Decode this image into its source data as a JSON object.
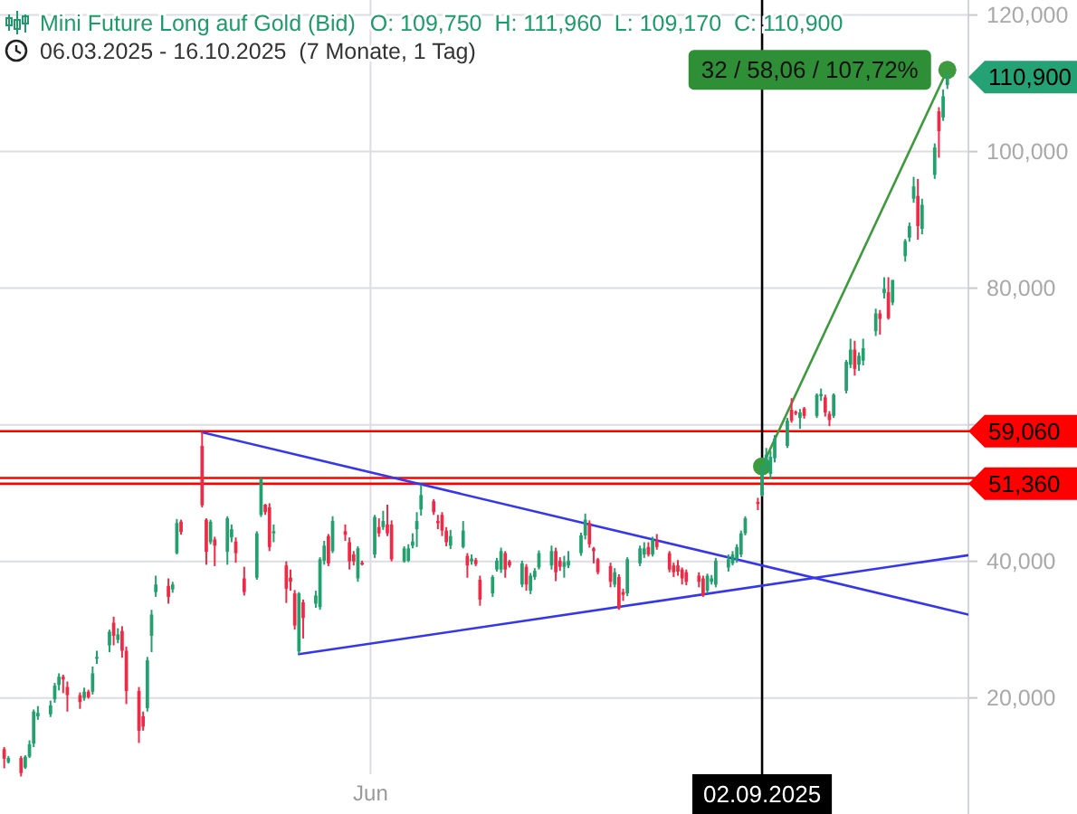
{
  "chart_data": {
    "type": "candlestick",
    "title": "Mini Future Long auf Gold (Bid)",
    "subtitle": "06.03.2025 - 16.10.2025  (7 Monate, 1 Tag)",
    "x": [
      "2025-03-06",
      "2025-03-07",
      "2025-03-10",
      "2025-03-11",
      "2025-03-12",
      "2025-03-13",
      "2025-03-14",
      "2025-03-17",
      "2025-03-18",
      "2025-03-19",
      "2025-03-20",
      "2025-03-21",
      "2025-03-24",
      "2025-03-25",
      "2025-03-26",
      "2025-03-27",
      "2025-03-28",
      "2025-03-31",
      "2025-04-01",
      "2025-04-02",
      "2025-04-03",
      "2025-04-04",
      "2025-04-07",
      "2025-04-08",
      "2025-04-09",
      "2025-04-10",
      "2025-04-11",
      "2025-04-14",
      "2025-04-15",
      "2025-04-16",
      "2025-04-17",
      "2025-04-22",
      "2025-04-23",
      "2025-04-24",
      "2025-04-25",
      "2025-04-28",
      "2025-04-29",
      "2025-04-30",
      "2025-05-02",
      "2025-05-05",
      "2025-05-06",
      "2025-05-07",
      "2025-05-08",
      "2025-05-09",
      "2025-05-12",
      "2025-05-13",
      "2025-05-14",
      "2025-05-15",
      "2025-05-16",
      "2025-05-19",
      "2025-05-20",
      "2025-05-21",
      "2025-05-22",
      "2025-05-23",
      "2025-05-26",
      "2025-05-27",
      "2025-05-28",
      "2025-05-29",
      "2025-05-30",
      "2025-06-02",
      "2025-06-03",
      "2025-06-04",
      "2025-06-05",
      "2025-06-06",
      "2025-06-09",
      "2025-06-10",
      "2025-06-11",
      "2025-06-12",
      "2025-06-13",
      "2025-06-16",
      "2025-06-17",
      "2025-06-18",
      "2025-06-19",
      "2025-06-20",
      "2025-06-23",
      "2025-06-24",
      "2025-06-25",
      "2025-06-26",
      "2025-06-27",
      "2025-06-30",
      "2025-07-01",
      "2025-07-02",
      "2025-07-03",
      "2025-07-04",
      "2025-07-07",
      "2025-07-08",
      "2025-07-09",
      "2025-07-10",
      "2025-07-11",
      "2025-07-14",
      "2025-07-15",
      "2025-07-16",
      "2025-07-17",
      "2025-07-18",
      "2025-07-21",
      "2025-07-22",
      "2025-07-23",
      "2025-07-24",
      "2025-07-25",
      "2025-07-28",
      "2025-07-29",
      "2025-07-30",
      "2025-07-31",
      "2025-08-01",
      "2025-08-04",
      "2025-08-05",
      "2025-08-06",
      "2025-08-07",
      "2025-08-08",
      "2025-08-11",
      "2025-08-12",
      "2025-08-13",
      "2025-08-14",
      "2025-08-15",
      "2025-08-18",
      "2025-08-19",
      "2025-08-20",
      "2025-08-21",
      "2025-08-22",
      "2025-08-25",
      "2025-08-26",
      "2025-08-27",
      "2025-08-28",
      "2025-08-29",
      "2025-09-01",
      "2025-09-02",
      "2025-09-03",
      "2025-09-04",
      "2025-09-05",
      "2025-09-08",
      "2025-09-09",
      "2025-09-10",
      "2025-09-11",
      "2025-09-12",
      "2025-09-15",
      "2025-09-16",
      "2025-09-17",
      "2025-09-18",
      "2025-09-19",
      "2025-09-22",
      "2025-09-23",
      "2025-09-24",
      "2025-09-25",
      "2025-09-26",
      "2025-09-29",
      "2025-09-30",
      "2025-10-01",
      "2025-10-02",
      "2025-10-03",
      "2025-10-06",
      "2025-10-07",
      "2025-10-08",
      "2025-10-09",
      "2025-10-10",
      "2025-10-13",
      "2025-10-14",
      "2025-10-15",
      "2025-10-16"
    ],
    "ohlc": [
      [
        12500,
        12800,
        9700,
        11100
      ],
      [
        10600,
        11500,
        10400,
        11200
      ],
      [
        11200,
        11500,
        8500,
        9000
      ],
      [
        9800,
        11600,
        9600,
        11400
      ],
      [
        11400,
        13800,
        11200,
        13200
      ],
      [
        13300,
        18300,
        12800,
        18000
      ],
      [
        17300,
        18800,
        16800,
        17800
      ],
      [
        17600,
        19600,
        17200,
        18900
      ],
      [
        19800,
        22200,
        19300,
        21800
      ],
      [
        21900,
        23600,
        21100,
        23100
      ],
      [
        23100,
        23400,
        20700,
        22700
      ],
      [
        21600,
        22400,
        18000,
        20400
      ],
      [
        20400,
        20800,
        18400,
        19400
      ],
      [
        20000,
        21500,
        19600,
        20900
      ],
      [
        20900,
        21200,
        19900,
        20100
      ],
      [
        20900,
        24600,
        20500,
        23600
      ],
      [
        25800,
        26900,
        25000,
        26000
      ],
      [
        27700,
        30000,
        26700,
        29700
      ],
      [
        31000,
        31900,
        27700,
        29100
      ],
      [
        28500,
        30200,
        28000,
        29300
      ],
      [
        29800,
        30500,
        25900,
        26900
      ],
      [
        26900,
        27500,
        19100,
        21000
      ],
      [
        21000,
        21600,
        13400,
        15200
      ],
      [
        17300,
        18000,
        15200,
        15800
      ],
      [
        18500,
        26000,
        18000,
        25500
      ],
      [
        29100,
        32900,
        26700,
        32200
      ],
      [
        35500,
        37900,
        34800,
        36600
      ],
      [
        36400,
        37500,
        33800,
        34800
      ],
      [
        35900,
        37000,
        35400,
        36600
      ],
      [
        41200,
        46200,
        41000,
        45600
      ],
      [
        45800,
        46100,
        43900,
        44300
      ],
      [
        56900,
        59000,
        47900,
        48200
      ],
      [
        46100,
        46300,
        39500,
        41400
      ],
      [
        42800,
        46100,
        42500,
        45800
      ],
      [
        43200,
        43600,
        39300,
        42300
      ],
      [
        41400,
        46600,
        39500,
        46300
      ],
      [
        43500,
        45400,
        42800,
        44700
      ],
      [
        42900,
        43500,
        39800,
        41200
      ],
      [
        37500,
        39200,
        35000,
        35500
      ],
      [
        37600,
        44400,
        37300,
        44100
      ],
      [
        46800,
        52200,
        46500,
        52100
      ],
      [
        48300,
        48400,
        46800,
        47200
      ],
      [
        47900,
        48500,
        41500,
        42100
      ],
      [
        44100,
        45400,
        42800,
        44400
      ],
      [
        39400,
        40000,
        33900,
        36000
      ],
      [
        37600,
        38800,
        35700,
        37000
      ],
      [
        35300,
        35800,
        30000,
        30600
      ],
      [
        26800,
        35500,
        26400,
        35300
      ],
      [
        34000,
        34400,
        28700,
        31700
      ],
      [
        33800,
        35700,
        33200,
        35000
      ],
      [
        33300,
        40600,
        32900,
        40300
      ],
      [
        40100,
        43000,
        39500,
        42300
      ],
      [
        43700,
        44000,
        39300,
        39700
      ],
      [
        41500,
        46600,
        41200,
        45900
      ],
      [
        44400,
        45400,
        43000,
        43900
      ],
      [
        42800,
        43500,
        38800,
        40000
      ],
      [
        41000,
        41500,
        39400,
        40000
      ],
      [
        37500,
        42200,
        37000,
        41900
      ],
      [
        39800,
        40100,
        39400,
        39600
      ],
      [
        41000,
        46800,
        40500,
        46500
      ],
      [
        45000,
        46300,
        43600,
        44100
      ],
      [
        45000,
        47400,
        44600,
        45900
      ],
      [
        45400,
        48300,
        43700,
        44100
      ],
      [
        45400,
        46000,
        40000,
        40300
      ],
      [
        40000,
        42200,
        39800,
        41900
      ],
      [
        40100,
        42500,
        39900,
        41900
      ],
      [
        42300,
        44100,
        41900,
        42900
      ],
      [
        44700,
        47200,
        42100,
        45900
      ],
      [
        47600,
        51200,
        46700,
        49700
      ],
      [
        48800,
        49100,
        46800,
        47200
      ],
      [
        45900,
        46800,
        44700,
        45600
      ],
      [
        46800,
        47200,
        43700,
        44500
      ],
      [
        44500,
        45000,
        42200,
        42800
      ],
      [
        42300,
        44600,
        41800,
        43700
      ],
      [
        42100,
        45900,
        41900,
        44500
      ],
      [
        40800,
        41200,
        37600,
        39400
      ],
      [
        40000,
        41000,
        39500,
        40400
      ],
      [
        40200,
        40500,
        39300,
        39600
      ],
      [
        37300,
        37900,
        33500,
        34400
      ],
      [
        35300,
        38000,
        34800,
        37700
      ],
      [
        38800,
        40500,
        38500,
        40100
      ],
      [
        38800,
        42000,
        38300,
        41500
      ],
      [
        41200,
        41500,
        37600,
        38800
      ],
      [
        40000,
        40200,
        39100,
        39400
      ],
      [
        36600,
        40100,
        36200,
        39700
      ],
      [
        39200,
        39600,
        35700,
        36600
      ],
      [
        35700,
        38300,
        35200,
        37900
      ],
      [
        37700,
        39000,
        37300,
        38600
      ],
      [
        39100,
        41600,
        38800,
        41200
      ],
      [
        39400,
        42300,
        38800,
        41500
      ],
      [
        41500,
        42000,
        37100,
        38400
      ],
      [
        40100,
        40600,
        38600,
        39200
      ],
      [
        39200,
        40800,
        37600,
        39900
      ],
      [
        39400,
        41500,
        39000,
        40100
      ],
      [
        41200,
        44200,
        40800,
        43800
      ],
      [
        43800,
        47000,
        43200,
        46100
      ],
      [
        45600,
        46000,
        42000,
        42500
      ],
      [
        41900,
        42100,
        39700,
        41500
      ],
      [
        40300,
        40500,
        38100,
        38400
      ],
      [
        39300,
        39800,
        36200,
        37000
      ],
      [
        36600,
        39000,
        36200,
        38400
      ],
      [
        37700,
        38100,
        32900,
        33100
      ],
      [
        35500,
        36000,
        34200,
        35100
      ],
      [
        35300,
        40600,
        34900,
        40300
      ],
      [
        39700,
        42300,
        39300,
        41900
      ],
      [
        41000,
        42800,
        40500,
        41900
      ],
      [
        42100,
        42800,
        40700,
        41000
      ],
      [
        41000,
        43600,
        40700,
        43200
      ],
      [
        43000,
        44000,
        41700,
        42100
      ],
      [
        41200,
        41500,
        38400,
        38800
      ],
      [
        39400,
        39800,
        37700,
        38400
      ],
      [
        39400,
        40200,
        37900,
        38500
      ],
      [
        38800,
        39100,
        36600,
        37500
      ],
      [
        38400,
        38800,
        36500,
        37000
      ],
      [
        37900,
        38400,
        36200,
        37000
      ],
      [
        37500,
        37900,
        34800,
        35000
      ],
      [
        35700,
        38200,
        35300,
        37900
      ],
      [
        37000,
        38000,
        36600,
        37500
      ],
      [
        36600,
        40500,
        36200,
        40100
      ],
      [
        39100,
        41000,
        38500,
        40300
      ],
      [
        39700,
        41500,
        39400,
        41000
      ],
      [
        40300,
        42500,
        39800,
        42100
      ],
      [
        41000,
        44500,
        40600,
        44100
      ],
      [
        44100,
        46600,
        43800,
        46300
      ],
      [
        48700,
        49300,
        47500,
        48400
      ],
      [
        49700,
        54200,
        49500,
        53900
      ],
      [
        53800,
        56600,
        53300,
        55600
      ],
      [
        52800,
        56200,
        52000,
        55300
      ],
      [
        55100,
        58500,
        54500,
        58000
      ],
      [
        56900,
        61000,
        56600,
        60600
      ],
      [
        62200,
        63900,
        60300,
        60600
      ],
      [
        61900,
        62100,
        61400,
        61700
      ],
      [
        61000,
        62300,
        59400,
        61800
      ],
      [
        62400,
        62600,
        60900,
        61300
      ],
      [
        61300,
        64600,
        61000,
        64400
      ],
      [
        64200,
        65300,
        63500,
        64500
      ],
      [
        64000,
        64400,
        61200,
        61800
      ],
      [
        61600,
        62000,
        59800,
        60700
      ],
      [
        61300,
        64600,
        61000,
        64400
      ],
      [
        65000,
        69500,
        64600,
        69200
      ],
      [
        68800,
        72600,
        68300,
        71000
      ],
      [
        71000,
        72300,
        67200,
        68200
      ],
      [
        68800,
        70600,
        67900,
        70100
      ],
      [
        69400,
        72600,
        68700,
        71200
      ],
      [
        73700,
        77000,
        73000,
        76300
      ],
      [
        76300,
        76800,
        73200,
        75500
      ],
      [
        79300,
        81600,
        78500,
        79900
      ],
      [
        79400,
        81600,
        75400,
        75600
      ],
      [
        77900,
        81200,
        77500,
        81200
      ],
      [
        84700,
        87200,
        83900,
        86900
      ],
      [
        87400,
        89600,
        86800,
        89100
      ],
      [
        93100,
        96300,
        92500,
        94900
      ],
      [
        93500,
        96000,
        87100,
        89100
      ],
      [
        88700,
        93100,
        87900,
        92200
      ],
      [
        96600,
        101200,
        96000,
        100600
      ],
      [
        105900,
        106500,
        99100,
        103000
      ],
      [
        105000,
        109100,
        104500,
        108100
      ],
      [
        109750,
        111960,
        109170,
        110900
      ]
    ],
    "colors": [
      "#ee2a46",
      "#22a06e",
      "#ee2a46",
      "#22a06e",
      "#22a06e",
      "#22a06e",
      "#22a06e",
      "#22a06e",
      "#22a06e",
      "#22a06e",
      "#ee2a46",
      "#ee2a46",
      "#ee2a46",
      "#22a06e",
      "#ee2a46",
      "#22a06e",
      "#22a06e",
      "#22a06e",
      "#ee2a46",
      "#22a06e",
      "#ee2a46",
      "#ee2a46",
      "#ee2a46",
      "#ee2a46",
      "#22a06e",
      "#22a06e",
      "#22a06e",
      "#ee2a46",
      "#22a06e",
      "#22a06e",
      "#ee2a46",
      "#ee2a46",
      "#ee2a46",
      "#22a06e",
      "#ee2a46",
      "#22a06e",
      "#22a06e",
      "#ee2a46",
      "#ee2a46",
      "#22a06e",
      "#22a06e",
      "#ee2a46",
      "#ee2a46",
      "#22a06e",
      "#ee2a46",
      "#ee2a46",
      "#ee2a46",
      "#22a06e",
      "#ee2a46",
      "#22a06e",
      "#22a06e",
      "#22a06e",
      "#ee2a46",
      "#22a06e",
      "#ee2a46",
      "#ee2a46",
      "#ee2a46",
      "#22a06e",
      "#ee2a46",
      "#22a06e",
      "#ee2a46",
      "#22a06e",
      "#ee2a46",
      "#ee2a46",
      "#22a06e",
      "#22a06e",
      "#22a06e",
      "#22a06e",
      "#22a06e",
      "#ee2a46",
      "#ee2a46",
      "#ee2a46",
      "#ee2a46",
      "#22a06e",
      "#22a06e",
      "#ee2a46",
      "#22a06e",
      "#ee2a46",
      "#ee2a46",
      "#22a06e",
      "#22a06e",
      "#22a06e",
      "#ee2a46",
      "#ee2a46",
      "#22a06e",
      "#ee2a46",
      "#22a06e",
      "#22a06e",
      "#22a06e",
      "#22a06e",
      "#ee2a46",
      "#ee2a46",
      "#22a06e",
      "#22a06e",
      "#22a06e",
      "#22a06e",
      "#ee2a46",
      "#ee2a46",
      "#ee2a46",
      "#ee2a46",
      "#22a06e",
      "#ee2a46",
      "#ee2a46",
      "#22a06e",
      "#22a06e",
      "#22a06e",
      "#ee2a46",
      "#22a06e",
      "#ee2a46",
      "#ee2a46",
      "#ee2a46",
      "#ee2a46",
      "#ee2a46",
      "#ee2a46",
      "#ee2a46",
      "#ee2a46",
      "#22a06e",
      "#22a06e",
      "#22a06e",
      "#22a06e",
      "#22a06e",
      "#22a06e",
      "#22a06e",
      "#22a06e",
      "#ee2a46",
      "#22a06e",
      "#22a06e",
      "#22a06e",
      "#22a06e",
      "#22a06e",
      "#ee2a46",
      "#ee2a46",
      "#22a06e",
      "#ee2a46",
      "#22a06e",
      "#22a06e",
      "#ee2a46",
      "#ee2a46",
      "#22a06e",
      "#22a06e",
      "#22a06e",
      "#ee2a46",
      "#22a06e",
      "#22a06e",
      "#22a06e",
      "#ee2a46",
      "#22a06e",
      "#ee2a46",
      "#22a06e",
      "#22a06e",
      "#22a06e",
      "#22a06e",
      "#ee2a46",
      "#22a06e",
      "#22a06e",
      "#ee2a46",
      "#22a06e",
      "#22a06e"
    ],
    "series": [
      {
        "type": "line",
        "x": [
          "2025-04-22",
          "2025-10-21"
        ],
        "values": [
          58900,
          32200
        ],
        "color": "#3636ee"
      },
      {
        "type": "line",
        "x": [
          "2025-05-15",
          "2025-10-21"
        ],
        "values": [
          26400,
          40900
        ],
        "color": "#3636ee"
      },
      {
        "type": "line",
        "x": [
          "2025-09-02",
          "2025-10-16"
        ],
        "values": [
          53900,
          111960
        ],
        "color": "#3d9a3d",
        "marker": "circle"
      }
    ],
    "xlim": [
      "2025-03-05",
      "2025-10-21"
    ],
    "xticks": [
      {
        "value": "2025-06",
        "label": "Jun"
      },
      {
        "value": "2025-09-02",
        "label": "02.09.2025"
      }
    ],
    "ylim": [
      3000,
      122200
    ],
    "yticks": [
      {
        "value": 20000,
        "label": "20,000"
      },
      {
        "value": 40000,
        "label": "40,000"
      },
      {
        "value": 60000,
        "label": null
      },
      {
        "value": 80000,
        "label": "80,000"
      },
      {
        "value": 100000,
        "label": "100,000"
      },
      {
        "value": 120000,
        "label": "120,000"
      }
    ],
    "grid": true,
    "ref_lines": [
      {
        "axis": "y",
        "value": 59060,
        "label": "59,060",
        "color": "#ff0000"
      },
      {
        "axis": "y",
        "value": 52200,
        "color": "#ff0000"
      },
      {
        "axis": "y",
        "value": 51360,
        "label": "51,360",
        "color": "#ff0000"
      },
      {
        "axis": "x",
        "value": "2025-09-02",
        "color": "#000000"
      }
    ],
    "annotations": [
      "O: 109,750  H: 111,960  L: 109,170  C: 110,900",
      {
        "text": "32 / 58,06 / 107,72%",
        "x": "2025-10-16",
        "y": 111960
      },
      {
        "text": "110,900",
        "x": "2025-10-16",
        "y": 110900
      }
    ]
  }
}
